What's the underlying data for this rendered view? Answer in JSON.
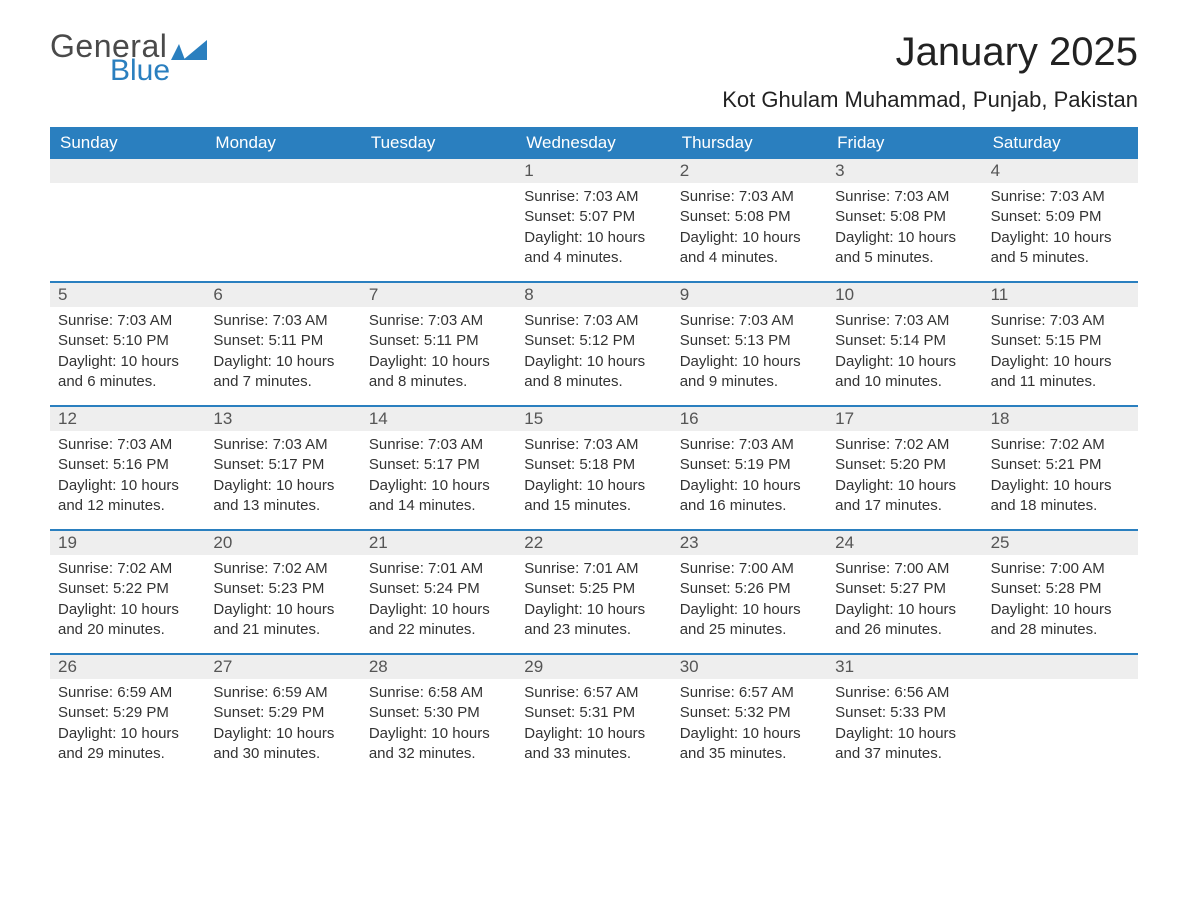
{
  "brand": {
    "word1": "General",
    "word2": "Blue",
    "text_color": "#4a4a4a",
    "accent_color": "#2a7fbf"
  },
  "title": "January 2025",
  "location": "Kot Ghulam Muhammad, Punjab, Pakistan",
  "colors": {
    "header_bg": "#2a7fbf",
    "header_text": "#ffffff",
    "daynum_bg": "#eeeeee",
    "daynum_text": "#555555",
    "body_text": "#333333",
    "week_border": "#2a7fbf",
    "page_bg": "#ffffff"
  },
  "day_names": [
    "Sunday",
    "Monday",
    "Tuesday",
    "Wednesday",
    "Thursday",
    "Friday",
    "Saturday"
  ],
  "weeks": [
    [
      {
        "day": "",
        "lines": []
      },
      {
        "day": "",
        "lines": []
      },
      {
        "day": "",
        "lines": []
      },
      {
        "day": "1",
        "lines": [
          "Sunrise: 7:03 AM",
          "Sunset: 5:07 PM",
          "Daylight: 10 hours and 4 minutes."
        ]
      },
      {
        "day": "2",
        "lines": [
          "Sunrise: 7:03 AM",
          "Sunset: 5:08 PM",
          "Daylight: 10 hours and 4 minutes."
        ]
      },
      {
        "day": "3",
        "lines": [
          "Sunrise: 7:03 AM",
          "Sunset: 5:08 PM",
          "Daylight: 10 hours and 5 minutes."
        ]
      },
      {
        "day": "4",
        "lines": [
          "Sunrise: 7:03 AM",
          "Sunset: 5:09 PM",
          "Daylight: 10 hours and 5 minutes."
        ]
      }
    ],
    [
      {
        "day": "5",
        "lines": [
          "Sunrise: 7:03 AM",
          "Sunset: 5:10 PM",
          "Daylight: 10 hours and 6 minutes."
        ]
      },
      {
        "day": "6",
        "lines": [
          "Sunrise: 7:03 AM",
          "Sunset: 5:11 PM",
          "Daylight: 10 hours and 7 minutes."
        ]
      },
      {
        "day": "7",
        "lines": [
          "Sunrise: 7:03 AM",
          "Sunset: 5:11 PM",
          "Daylight: 10 hours and 8 minutes."
        ]
      },
      {
        "day": "8",
        "lines": [
          "Sunrise: 7:03 AM",
          "Sunset: 5:12 PM",
          "Daylight: 10 hours and 8 minutes."
        ]
      },
      {
        "day": "9",
        "lines": [
          "Sunrise: 7:03 AM",
          "Sunset: 5:13 PM",
          "Daylight: 10 hours and 9 minutes."
        ]
      },
      {
        "day": "10",
        "lines": [
          "Sunrise: 7:03 AM",
          "Sunset: 5:14 PM",
          "Daylight: 10 hours and 10 minutes."
        ]
      },
      {
        "day": "11",
        "lines": [
          "Sunrise: 7:03 AM",
          "Sunset: 5:15 PM",
          "Daylight: 10 hours and 11 minutes."
        ]
      }
    ],
    [
      {
        "day": "12",
        "lines": [
          "Sunrise: 7:03 AM",
          "Sunset: 5:16 PM",
          "Daylight: 10 hours and 12 minutes."
        ]
      },
      {
        "day": "13",
        "lines": [
          "Sunrise: 7:03 AM",
          "Sunset: 5:17 PM",
          "Daylight: 10 hours and 13 minutes."
        ]
      },
      {
        "day": "14",
        "lines": [
          "Sunrise: 7:03 AM",
          "Sunset: 5:17 PM",
          "Daylight: 10 hours and 14 minutes."
        ]
      },
      {
        "day": "15",
        "lines": [
          "Sunrise: 7:03 AM",
          "Sunset: 5:18 PM",
          "Daylight: 10 hours and 15 minutes."
        ]
      },
      {
        "day": "16",
        "lines": [
          "Sunrise: 7:03 AM",
          "Sunset: 5:19 PM",
          "Daylight: 10 hours and 16 minutes."
        ]
      },
      {
        "day": "17",
        "lines": [
          "Sunrise: 7:02 AM",
          "Sunset: 5:20 PM",
          "Daylight: 10 hours and 17 minutes."
        ]
      },
      {
        "day": "18",
        "lines": [
          "Sunrise: 7:02 AM",
          "Sunset: 5:21 PM",
          "Daylight: 10 hours and 18 minutes."
        ]
      }
    ],
    [
      {
        "day": "19",
        "lines": [
          "Sunrise: 7:02 AM",
          "Sunset: 5:22 PM",
          "Daylight: 10 hours and 20 minutes."
        ]
      },
      {
        "day": "20",
        "lines": [
          "Sunrise: 7:02 AM",
          "Sunset: 5:23 PM",
          "Daylight: 10 hours and 21 minutes."
        ]
      },
      {
        "day": "21",
        "lines": [
          "Sunrise: 7:01 AM",
          "Sunset: 5:24 PM",
          "Daylight: 10 hours and 22 minutes."
        ]
      },
      {
        "day": "22",
        "lines": [
          "Sunrise: 7:01 AM",
          "Sunset: 5:25 PM",
          "Daylight: 10 hours and 23 minutes."
        ]
      },
      {
        "day": "23",
        "lines": [
          "Sunrise: 7:00 AM",
          "Sunset: 5:26 PM",
          "Daylight: 10 hours and 25 minutes."
        ]
      },
      {
        "day": "24",
        "lines": [
          "Sunrise: 7:00 AM",
          "Sunset: 5:27 PM",
          "Daylight: 10 hours and 26 minutes."
        ]
      },
      {
        "day": "25",
        "lines": [
          "Sunrise: 7:00 AM",
          "Sunset: 5:28 PM",
          "Daylight: 10 hours and 28 minutes."
        ]
      }
    ],
    [
      {
        "day": "26",
        "lines": [
          "Sunrise: 6:59 AM",
          "Sunset: 5:29 PM",
          "Daylight: 10 hours and 29 minutes."
        ]
      },
      {
        "day": "27",
        "lines": [
          "Sunrise: 6:59 AM",
          "Sunset: 5:29 PM",
          "Daylight: 10 hours and 30 minutes."
        ]
      },
      {
        "day": "28",
        "lines": [
          "Sunrise: 6:58 AM",
          "Sunset: 5:30 PM",
          "Daylight: 10 hours and 32 minutes."
        ]
      },
      {
        "day": "29",
        "lines": [
          "Sunrise: 6:57 AM",
          "Sunset: 5:31 PM",
          "Daylight: 10 hours and 33 minutes."
        ]
      },
      {
        "day": "30",
        "lines": [
          "Sunrise: 6:57 AM",
          "Sunset: 5:32 PM",
          "Daylight: 10 hours and 35 minutes."
        ]
      },
      {
        "day": "31",
        "lines": [
          "Sunrise: 6:56 AM",
          "Sunset: 5:33 PM",
          "Daylight: 10 hours and 37 minutes."
        ]
      },
      {
        "day": "",
        "lines": []
      }
    ]
  ]
}
